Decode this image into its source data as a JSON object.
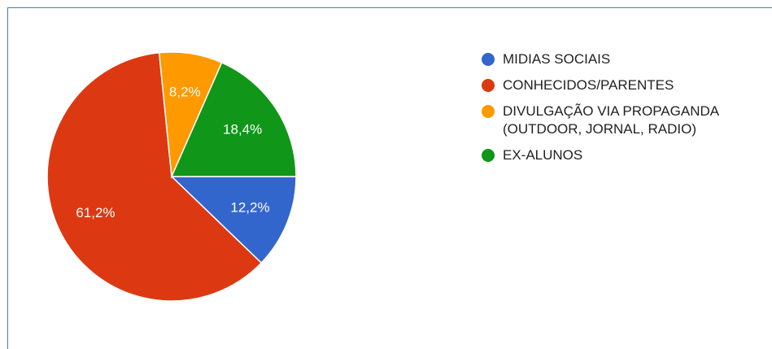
{
  "chart_data": {
    "type": "pie",
    "categories": [
      "MIDIAS SOCIAIS",
      "CONHECIDOS/PARENTES",
      "DIVULGAÇÃO VIA PROPAGANDA (OUTDOOR, JORNAL, RADIO)",
      "EX-ALUNOS"
    ],
    "values": [
      12.2,
      61.2,
      8.2,
      18.4
    ],
    "value_labels": [
      "12,2%",
      "61,2%",
      "8,2%",
      "18,4%"
    ],
    "colors": [
      "#3366cc",
      "#dc3912",
      "#ff9900",
      "#109618"
    ],
    "legend": "right"
  }
}
